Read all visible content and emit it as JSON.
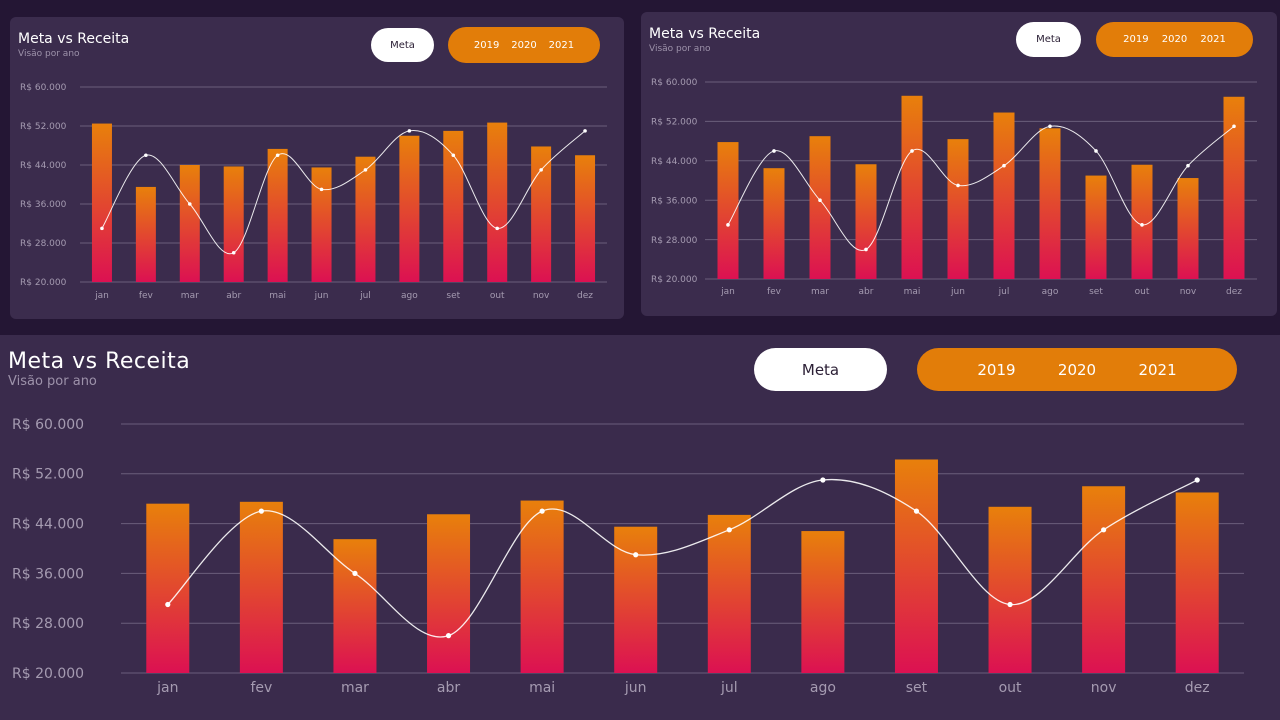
{
  "colors": {
    "background": "#241634",
    "card": "#3b2c4d",
    "bar_top": "#e8800b",
    "bar_bottom": "#dc1152",
    "accent": "#e27d09",
    "line": "#ffffff",
    "grid": "#6b5e7b"
  },
  "panels": [
    {
      "title": "Meta vs Receita",
      "subtitle": "Visão por ano",
      "meta_label": "Meta",
      "years": [
        "2019",
        "2020",
        "2021"
      ]
    },
    {
      "title": "Meta vs Receita",
      "subtitle": "Visão por ano",
      "meta_label": "Meta",
      "years": [
        "2019",
        "2020",
        "2021"
      ]
    },
    {
      "title": "Meta vs Receita",
      "subtitle": "Visão por ano",
      "meta_label": "Meta",
      "years": [
        "2019",
        "2020",
        "2021"
      ]
    }
  ],
  "chart_data": [
    {
      "type": "bar",
      "title": "Meta vs Receita",
      "subtitle": "Visão por ano",
      "categories": [
        "jan",
        "fev",
        "mar",
        "abr",
        "mai",
        "jun",
        "jul",
        "ago",
        "set",
        "out",
        "nov",
        "dez"
      ],
      "yticks": [
        "R$ 20.000",
        "R$ 28.000",
        "R$ 36.000",
        "R$ 44.000",
        "R$ 52.000",
        "R$ 60.000"
      ],
      "ylim": [
        20000,
        60000
      ],
      "grid": true,
      "series": [
        {
          "type": "bar",
          "values": [
            52500,
            39500,
            44000,
            43700,
            47300,
            43500,
            45700,
            50000,
            51000,
            52700,
            47800,
            46000
          ]
        },
        {
          "name": "Meta",
          "type": "line",
          "values": [
            31000,
            46000,
            36000,
            26000,
            46000,
            39000,
            43000,
            51000,
            46000,
            31000,
            43000,
            51000
          ]
        }
      ]
    },
    {
      "type": "bar",
      "title": "Meta vs Receita",
      "subtitle": "Visão por ano",
      "categories": [
        "jan",
        "fev",
        "mar",
        "abr",
        "mai",
        "jun",
        "jul",
        "ago",
        "set",
        "out",
        "nov",
        "dez"
      ],
      "yticks": [
        "R$ 20.000",
        "R$ 28.000",
        "R$ 36.000",
        "R$ 44.000",
        "R$ 52.000",
        "R$ 60.000"
      ],
      "ylim": [
        20000,
        60000
      ],
      "grid": true,
      "series": [
        {
          "type": "bar",
          "values": [
            47800,
            42500,
            49000,
            43300,
            57200,
            48400,
            53800,
            50600,
            41000,
            43200,
            40500,
            57000
          ]
        },
        {
          "name": "Meta",
          "type": "line",
          "values": [
            31000,
            46000,
            36000,
            26000,
            46000,
            39000,
            43000,
            51000,
            46000,
            31000,
            43000,
            51000
          ]
        }
      ]
    },
    {
      "type": "bar",
      "title": "Meta vs Receita",
      "subtitle": "Visão por ano",
      "categories": [
        "jan",
        "fev",
        "mar",
        "abr",
        "mai",
        "jun",
        "jul",
        "ago",
        "set",
        "out",
        "nov",
        "dez"
      ],
      "yticks": [
        "R$ 20.000",
        "R$ 28.000",
        "R$ 36.000",
        "R$ 44.000",
        "R$ 52.000",
        "R$ 60.000"
      ],
      "ylim": [
        20000,
        60000
      ],
      "grid": true,
      "series": [
        {
          "type": "bar",
          "values": [
            47200,
            47500,
            41500,
            45500,
            47700,
            43500,
            45400,
            42800,
            54300,
            46700,
            50000,
            49000
          ]
        },
        {
          "name": "Meta",
          "type": "line",
          "values": [
            31000,
            46000,
            36000,
            26000,
            46000,
            39000,
            43000,
            51000,
            46000,
            31000,
            43000,
            51000
          ]
        }
      ]
    }
  ]
}
